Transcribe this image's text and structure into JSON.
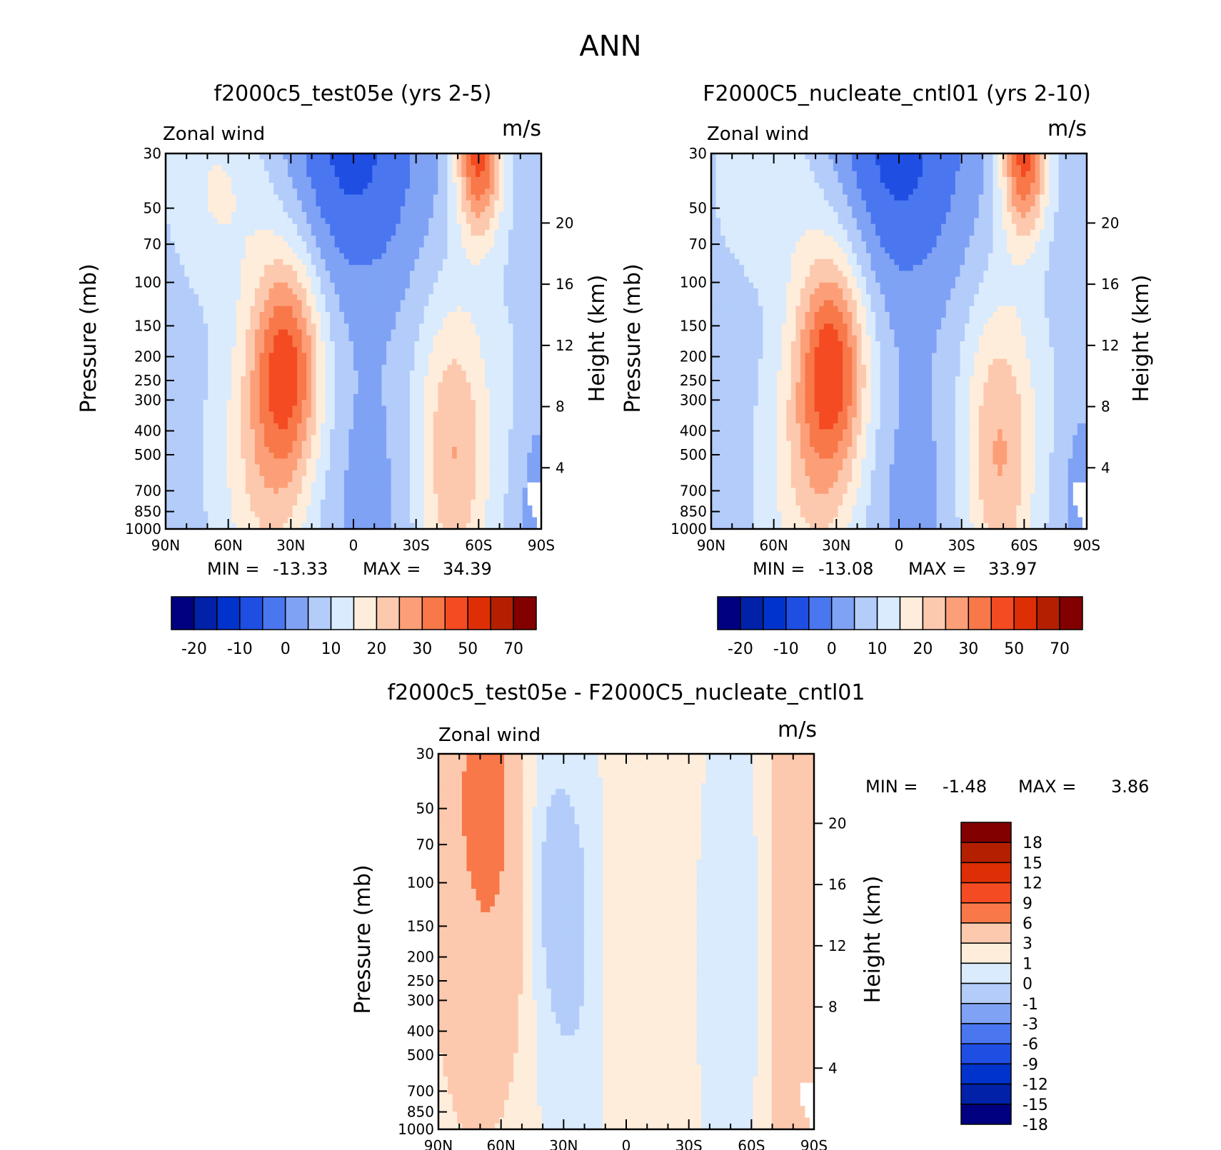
{
  "figure": {
    "title": "ANN"
  },
  "axes": {
    "pressure_label": "Pressure (mb)",
    "height_label": "Height (km)",
    "pressure_ticks": [
      30,
      50,
      70,
      100,
      150,
      200,
      250,
      300,
      400,
      500,
      700,
      850,
      1000
    ],
    "height_ticks": [
      4,
      8,
      12,
      16,
      20
    ],
    "lat_ticks": [
      "90N",
      "60N",
      "30N",
      "0",
      "30S",
      "60S",
      "90S"
    ]
  },
  "colors": {
    "full": [
      "#000080",
      "#0021a8",
      "#0033cc",
      "#1f4ee3",
      "#4a76f0",
      "#7fa2f5",
      "#b3ccfa",
      "#d9ebfd",
      "#feeddb",
      "#fdc9ae",
      "#fc9f78",
      "#f8784a",
      "#f44b22",
      "#de2e06",
      "#b41f00",
      "#820000"
    ],
    "diff": [
      "#000080",
      "#0021a8",
      "#0033cc",
      "#1f4ee3",
      "#4a76f0",
      "#7fa2f5",
      "#b3ccfa",
      "#d9ebfd",
      "#feeddb",
      "#fdc9ae",
      "#f8784a",
      "#f44b22",
      "#de2e06",
      "#b41f00",
      "#820000"
    ]
  },
  "chart_data": [
    {
      "type": "heatmap",
      "title": "f2000c5_test05e (yrs 2-5)",
      "variable": "Zonal wind",
      "units": "m/s",
      "stats": {
        "min_label": "MIN =",
        "min": "-13.33",
        "max_label": "MAX =",
        "max": "34.39"
      },
      "colorbar_labels": [
        "-20",
        "-10",
        "0",
        "10",
        "20",
        "30",
        "50",
        "70"
      ],
      "wind_field": "test"
    },
    {
      "type": "heatmap",
      "title": "F2000C5_nucleate_cntl01 (yrs 2-10)",
      "variable": "Zonal wind",
      "units": "m/s",
      "stats": {
        "min_label": "MIN =",
        "min": "-13.08",
        "max_label": "MAX =",
        "max": "33.97"
      },
      "colorbar_labels": [
        "-20",
        "-10",
        "0",
        "10",
        "20",
        "30",
        "50",
        "70"
      ],
      "wind_field": "control"
    },
    {
      "type": "heatmap",
      "title": "f2000c5_test05e - F2000C5_nucleate_cntl01",
      "variable": "Zonal wind",
      "units": "m/s",
      "stats": {
        "min_label": "MIN =",
        "min": "-1.48",
        "max_label": "MAX =",
        "max": "3.86"
      },
      "colorbar_labels": [
        "18",
        "15",
        "12",
        "9",
        "6",
        "3",
        "1",
        "0",
        "-1",
        "-3",
        "-6",
        "-9",
        "-12",
        "-15",
        "-18"
      ],
      "wind_field": "difference"
    }
  ]
}
